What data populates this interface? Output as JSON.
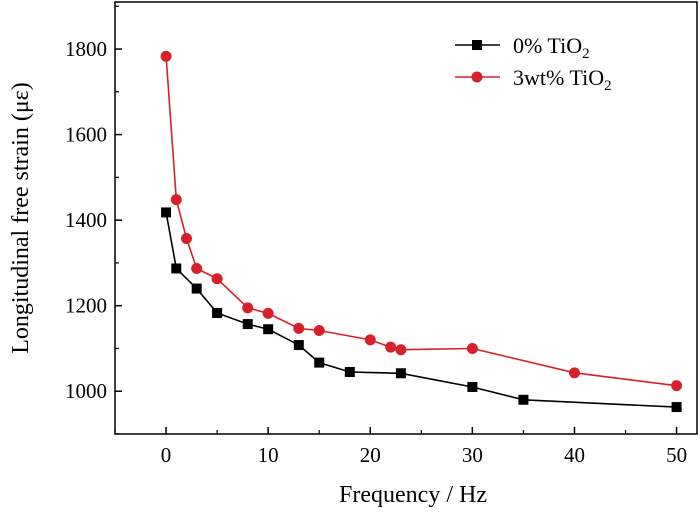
{
  "chart_data": {
    "type": "line",
    "title": "",
    "xlabel": "Frequency / Hz",
    "ylabel": "Longitudinal free strain (με)",
    "xlim": [
      -5,
      52
    ],
    "ylim": [
      900,
      1910
    ],
    "xticks": [
      0,
      10,
      20,
      30,
      40,
      50
    ],
    "yticks": [
      1000,
      1200,
      1400,
      1600,
      1800
    ],
    "xtick_labels": [
      "0",
      "10",
      "20",
      "30",
      "40",
      "50"
    ],
    "ytick_labels": [
      "1000",
      "1200",
      "1400",
      "1600",
      "1800"
    ],
    "grid": false,
    "legend_position": "top-right",
    "series": [
      {
        "name": "0% TiO2",
        "name_base": "0% TiO",
        "name_sub": "2",
        "marker": "square",
        "color": "#000000",
        "x": [
          0,
          1,
          3,
          5,
          8,
          10,
          13,
          15,
          18,
          23,
          30,
          35,
          50
        ],
        "y": [
          1418,
          1287,
          1240,
          1183,
          1157,
          1145,
          1108,
          1067,
          1045,
          1042,
          1010,
          980,
          963
        ]
      },
      {
        "name": "3wt% TiO2",
        "name_base": "3wt% TiO",
        "name_sub": "2",
        "marker": "circle",
        "color": "#d8202a",
        "x": [
          0,
          1,
          2,
          3,
          5,
          8,
          10,
          13,
          15,
          20,
          22,
          23,
          30,
          40,
          50
        ],
        "y": [
          1783,
          1448,
          1357,
          1287,
          1263,
          1195,
          1182,
          1147,
          1142,
          1120,
          1103,
          1097,
          1100,
          1043,
          1013
        ]
      }
    ]
  }
}
